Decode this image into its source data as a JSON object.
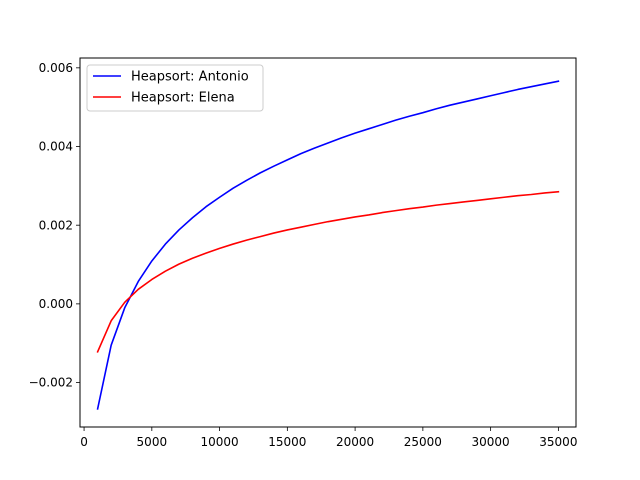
{
  "chart_data": {
    "type": "line",
    "title": "",
    "xlabel": "",
    "ylabel": "",
    "xlim": [
      -300,
      36300
    ],
    "ylim": [
      -0.00313,
      0.00625
    ],
    "xticks": [
      0,
      5000,
      10000,
      15000,
      20000,
      25000,
      30000,
      35000
    ],
    "yticks": [
      -0.002,
      0.0,
      0.002,
      0.004,
      0.006
    ],
    "xtick_labels": [
      "0",
      "5000",
      "10000",
      "15000",
      "20000",
      "25000",
      "30000",
      "35000"
    ],
    "ytick_labels": [
      "−0.002",
      "0.000",
      "0.002",
      "0.004",
      "0.006"
    ],
    "grid": false,
    "legend": {
      "position": "top-left"
    },
    "series": [
      {
        "name": "Heapsort: Antonio",
        "color": "#0000ff",
        "x": [
          1000,
          2000,
          3000,
          4000,
          5000,
          6000,
          7000,
          8000,
          9000,
          10000,
          11000,
          12000,
          13000,
          14000,
          15000,
          16000,
          17000,
          18000,
          19000,
          20000,
          21000,
          22000,
          23000,
          24000,
          25000,
          26000,
          27000,
          28000,
          29000,
          30000,
          31000,
          32000,
          33000,
          34000,
          35000
        ],
        "y": [
          -0.00267,
          -0.00105,
          -0.0001,
          0.00057,
          0.00109,
          0.00152,
          0.00188,
          0.00219,
          0.00247,
          0.00271,
          0.00294,
          0.00314,
          0.00333,
          0.0035,
          0.00366,
          0.00382,
          0.00396,
          0.00409,
          0.00422,
          0.00434,
          0.00445,
          0.00456,
          0.00467,
          0.00477,
          0.00486,
          0.00496,
          0.00505,
          0.00513,
          0.00521,
          0.00529,
          0.00537,
          0.00545,
          0.00552,
          0.00559,
          0.00566
        ]
      },
      {
        "name": "Heapsort: Elena",
        "color": "#ff0000",
        "x": [
          1000,
          2000,
          3000,
          4000,
          5000,
          6000,
          7000,
          8000,
          9000,
          10000,
          11000,
          12000,
          13000,
          14000,
          15000,
          16000,
          17000,
          18000,
          19000,
          20000,
          21000,
          22000,
          23000,
          24000,
          25000,
          26000,
          27000,
          28000,
          29000,
          30000,
          31000,
          32000,
          33000,
          34000,
          35000
        ],
        "y": [
          -0.00122,
          -0.00043,
          4e-05,
          0.00037,
          0.00062,
          0.00083,
          0.00101,
          0.00116,
          0.00129,
          0.00141,
          0.00152,
          0.00162,
          0.00171,
          0.0018,
          0.00188,
          0.00195,
          0.00202,
          0.00209,
          0.00215,
          0.00221,
          0.00226,
          0.00232,
          0.00237,
          0.00242,
          0.00246,
          0.00251,
          0.00255,
          0.00259,
          0.00263,
          0.00267,
          0.00271,
          0.00275,
          0.00278,
          0.00282,
          0.00285
        ]
      }
    ]
  }
}
